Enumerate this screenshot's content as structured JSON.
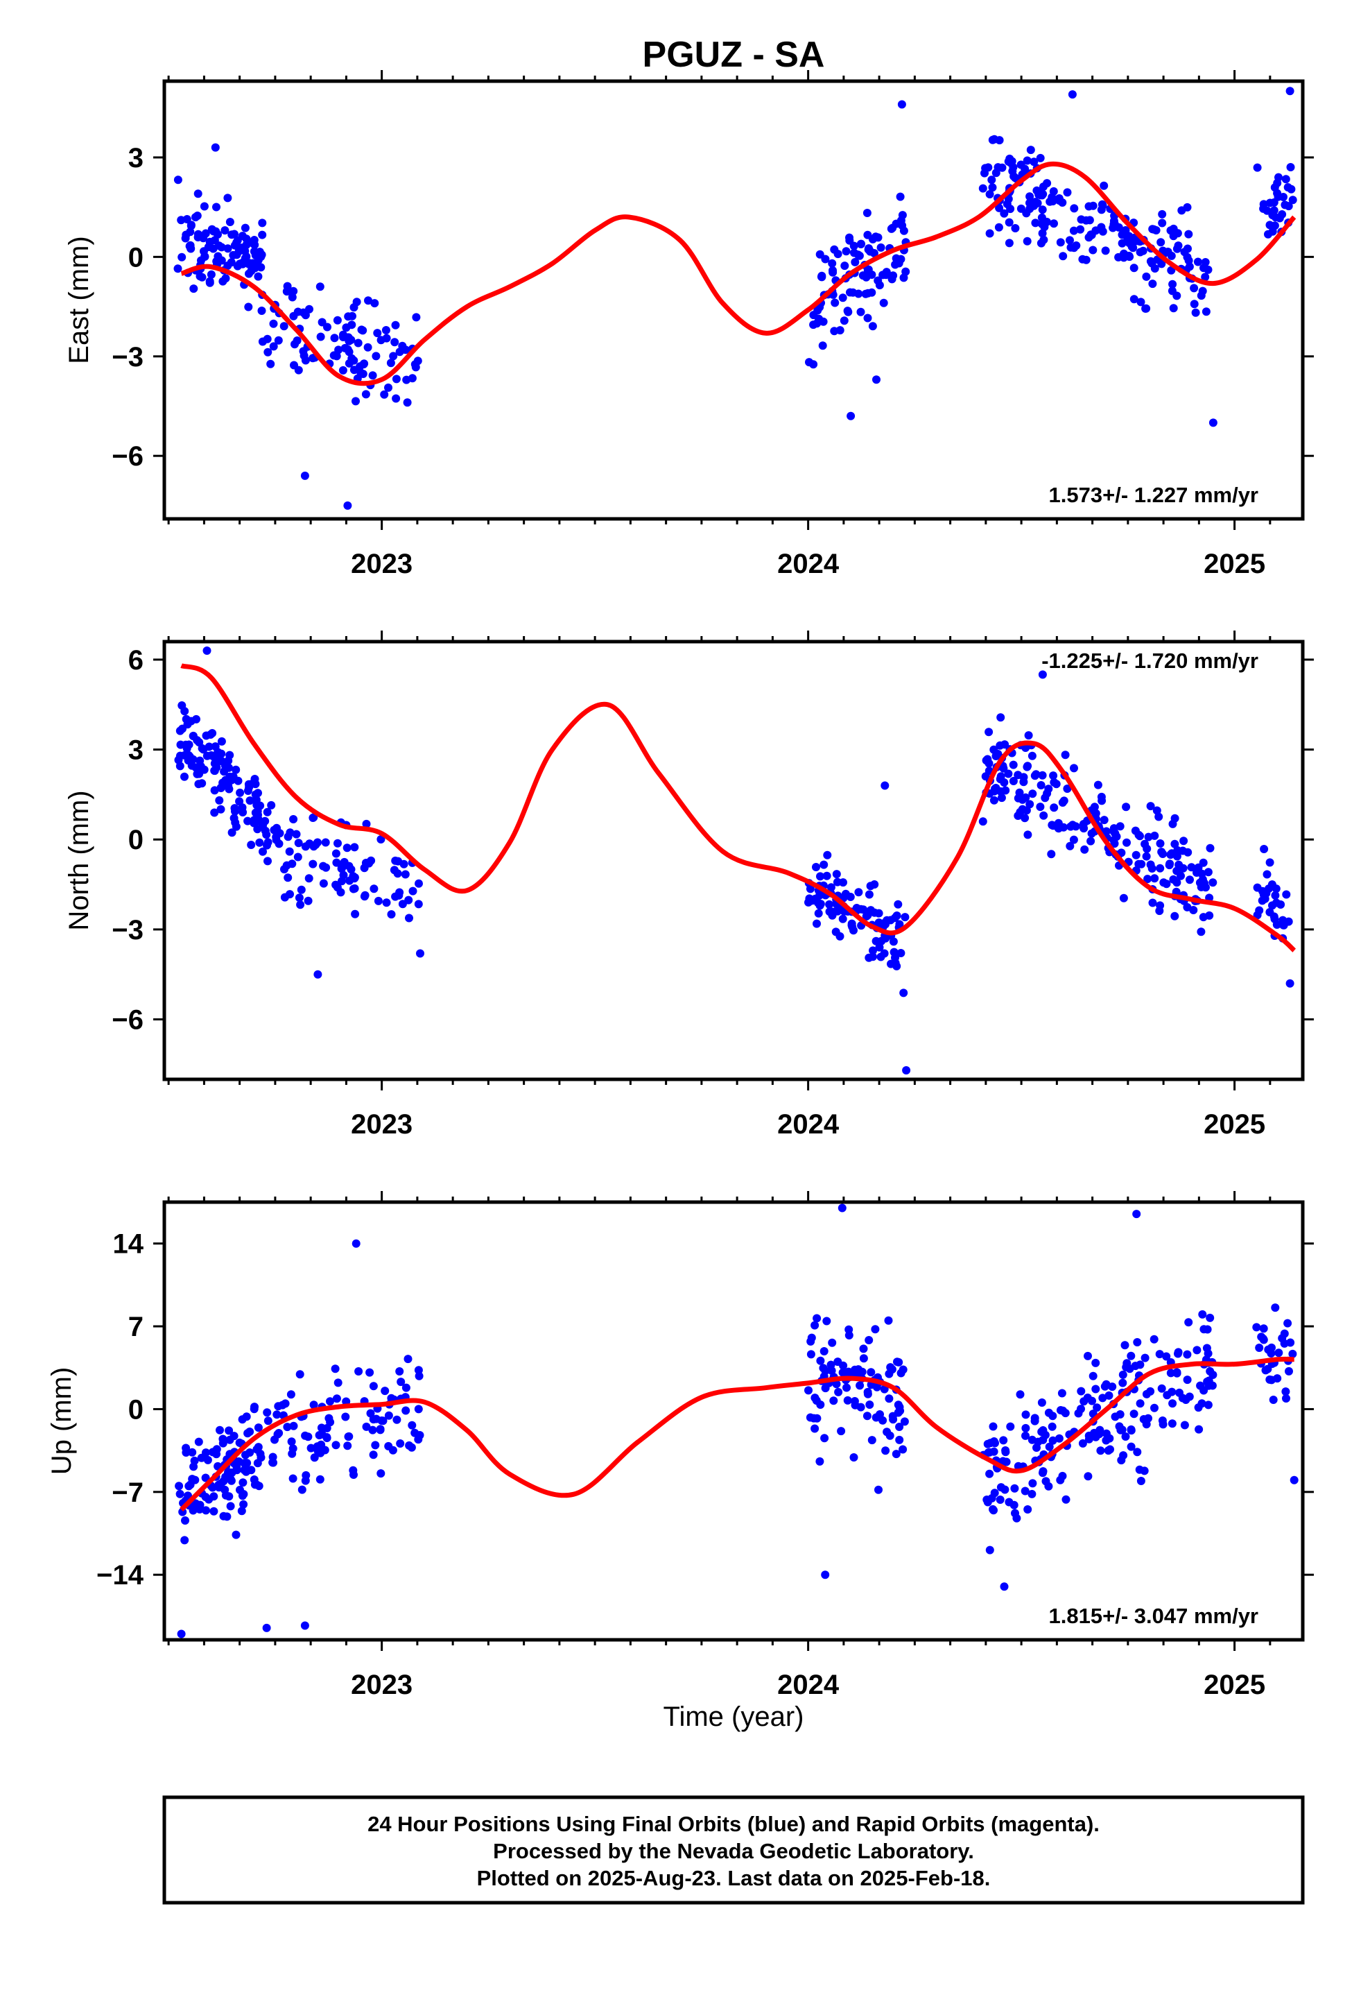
{
  "title": "PGUZ - SA",
  "x_axis_label": "Time (year)",
  "footer": {
    "line1": "24 Hour Positions Using Final Orbits (blue) and Rapid Orbits (magenta).",
    "line2": "Processed by the Nevada Geodetic Laboratory.",
    "line3": "Plotted on 2025-Aug-23. Last data on 2025-Feb-18."
  },
  "colors": {
    "points": "#0000ff",
    "fit": "#ff0000",
    "axes": "#000000"
  },
  "chart_data": [
    {
      "type": "scatter",
      "ylabel": "East (mm)",
      "rate": "1.573+/- 1.227 mm/yr",
      "rate_position": "bottom-right",
      "xlim": [
        2022.49,
        2025.16
      ],
      "ylim": [
        -7.9,
        5.3
      ],
      "xticks": [
        2023,
        2024,
        2025
      ],
      "xtick_labels": [
        "2023",
        "2024",
        "2025"
      ],
      "yticks": [
        3,
        0,
        -3,
        -6
      ],
      "ytick_labels": [
        "3",
        "0",
        "−3",
        "−6"
      ],
      "grid": false,
      "scatter_clusters": [
        {
          "x": [
            2022.52,
            2022.72
          ],
          "y_trend": [
            0.5,
            -0.2
          ],
          "spread": 1.3,
          "n": 110
        },
        {
          "x": [
            2022.72,
            2023.09
          ],
          "y_trend": [
            -1.9,
            -3.3
          ],
          "spread": 1.4,
          "n": 100
        },
        {
          "x": [
            2024.0,
            2024.23
          ],
          "y_trend": [
            -1.8,
            0.7
          ],
          "spread": 1.6,
          "n": 100
        },
        {
          "x": [
            2024.41,
            2024.95
          ],
          "y_trend": [
            2.3,
            -0.6
          ],
          "spread": 1.5,
          "n": 200
        },
        {
          "x": [
            2025.05,
            2025.14
          ],
          "y_trend": [
            1.5,
            1.7
          ],
          "spread": 1.0,
          "n": 30
        }
      ],
      "notable_points": [
        {
          "x": 2022.61,
          "y": 3.3
        },
        {
          "x": 2022.92,
          "y": -7.5
        },
        {
          "x": 2022.82,
          "y": -6.6
        },
        {
          "x": 2024.1,
          "y": -4.8
        },
        {
          "x": 2024.22,
          "y": 4.6
        },
        {
          "x": 2024.95,
          "y": -5.0
        },
        {
          "x": 2025.13,
          "y": 5.0
        },
        {
          "x": 2024.62,
          "y": 4.9
        },
        {
          "x": 2024.16,
          "y": -3.7
        }
      ],
      "fit": {
        "x": [
          2022.53,
          2022.6,
          2022.7,
          2022.8,
          2022.9,
          2023.0,
          2023.1,
          2023.2,
          2023.3,
          2023.4,
          2023.5,
          2023.58,
          2023.7,
          2023.8,
          2023.9,
          2024.0,
          2024.1,
          2024.2,
          2024.3,
          2024.4,
          2024.5,
          2024.57,
          2024.65,
          2024.75,
          2024.85,
          2024.95,
          2025.05,
          2025.14
        ],
        "y": [
          -0.5,
          -0.3,
          -0.9,
          -2.2,
          -3.6,
          -3.7,
          -2.5,
          -1.5,
          -0.9,
          -0.2,
          0.8,
          1.2,
          0.5,
          -1.4,
          -2.3,
          -1.6,
          -0.5,
          0.2,
          0.6,
          1.2,
          2.3,
          2.8,
          2.4,
          1.0,
          -0.2,
          -0.8,
          -0.1,
          1.2
        ]
      }
    },
    {
      "type": "scatter",
      "ylabel": "North (mm)",
      "rate": "-1.225+/- 1.720 mm/yr",
      "rate_position": "top-right",
      "xlim": [
        2022.49,
        2025.16
      ],
      "ylim": [
        -8.0,
        6.6
      ],
      "xticks": [
        2023,
        2024,
        2025
      ],
      "xtick_labels": [
        "2023",
        "2024",
        "2025"
      ],
      "yticks": [
        6,
        3,
        0,
        -3,
        -6
      ],
      "ytick_labels": [
        "6",
        "3",
        "0",
        "−3",
        "−6"
      ],
      "grid": false,
      "scatter_clusters": [
        {
          "x": [
            2022.52,
            2022.72
          ],
          "y_trend": [
            3.4,
            0.8
          ],
          "spread": 1.3,
          "n": 110
        },
        {
          "x": [
            2022.72,
            2023.09
          ],
          "y_trend": [
            0.0,
            -1.8
          ],
          "spread": 1.4,
          "n": 100
        },
        {
          "x": [
            2024.0,
            2024.23
          ],
          "y_trend": [
            -1.5,
            -3.6
          ],
          "spread": 1.4,
          "n": 100
        },
        {
          "x": [
            2024.41,
            2024.95
          ],
          "y_trend": [
            2.8,
            -1.8
          ],
          "spread": 1.5,
          "n": 200
        },
        {
          "x": [
            2025.05,
            2025.14
          ],
          "y_trend": [
            -1.2,
            -3.2
          ],
          "spread": 1.2,
          "n": 30
        }
      ],
      "notable_points": [
        {
          "x": 2022.59,
          "y": 6.3
        },
        {
          "x": 2022.85,
          "y": -4.5
        },
        {
          "x": 2023.09,
          "y": -3.8
        },
        {
          "x": 2024.23,
          "y": -7.7
        },
        {
          "x": 2024.18,
          "y": 1.8
        },
        {
          "x": 2024.55,
          "y": 5.5
        },
        {
          "x": 2025.13,
          "y": -4.8
        },
        {
          "x": 2024.41,
          "y": 0.6
        }
      ],
      "fit": {
        "x": [
          2022.53,
          2022.6,
          2022.7,
          2022.8,
          2022.9,
          2023.0,
          2023.1,
          2023.2,
          2023.3,
          2023.4,
          2023.53,
          2023.65,
          2023.8,
          2023.95,
          2024.05,
          2024.15,
          2024.23,
          2024.35,
          2024.45,
          2024.53,
          2024.6,
          2024.7,
          2024.8,
          2024.9,
          2025.0,
          2025.1,
          2025.14
        ],
        "y": [
          5.8,
          5.4,
          3.2,
          1.4,
          0.5,
          0.2,
          -1.0,
          -1.7,
          -0.1,
          3.0,
          4.5,
          2.2,
          -0.4,
          -1.1,
          -1.8,
          -2.9,
          -2.9,
          -0.6,
          2.6,
          3.2,
          2.2,
          -0.1,
          -1.6,
          -2.0,
          -2.3,
          -3.2,
          -3.7
        ]
      }
    },
    {
      "type": "scatter",
      "ylabel": "Up (mm)",
      "rate": "1.815+/- 3.047 mm/yr",
      "rate_position": "bottom-right",
      "xlim": [
        2022.49,
        2025.16
      ],
      "ylim": [
        -19.5,
        17.5
      ],
      "xticks": [
        2023,
        2024,
        2025
      ],
      "xtick_labels": [
        "2023",
        "2024",
        "2025"
      ],
      "yticks": [
        14,
        7,
        0,
        -7,
        -14
      ],
      "ytick_labels": [
        "14",
        "7",
        "0",
        "−7",
        "−14"
      ],
      "grid": false,
      "scatter_clusters": [
        {
          "x": [
            2022.52,
            2022.72
          ],
          "y_trend": [
            -7.5,
            -3.5
          ],
          "spread": 4.5,
          "n": 110
        },
        {
          "x": [
            2022.72,
            2023.09
          ],
          "y_trend": [
            -3.0,
            0.5
          ],
          "spread": 5.0,
          "n": 100
        },
        {
          "x": [
            2024.0,
            2024.23
          ],
          "y_trend": [
            3.0,
            1.0
          ],
          "spread": 6.0,
          "n": 100
        },
        {
          "x": [
            2024.41,
            2024.95
          ],
          "y_trend": [
            -6.0,
            4.5
          ],
          "spread": 5.5,
          "n": 200
        },
        {
          "x": [
            2025.05,
            2025.14
          ],
          "y_trend": [
            4.5,
            4.5
          ],
          "spread": 4.5,
          "n": 30
        }
      ],
      "notable_points": [
        {
          "x": 2022.53,
          "y": -19.0
        },
        {
          "x": 2022.73,
          "y": -18.5
        },
        {
          "x": 2022.82,
          "y": -18.3
        },
        {
          "x": 2022.94,
          "y": 14.0
        },
        {
          "x": 2024.08,
          "y": 17.0
        },
        {
          "x": 2024.04,
          "y": -14.0
        },
        {
          "x": 2024.46,
          "y": -15.0
        },
        {
          "x": 2024.77,
          "y": 16.5
        },
        {
          "x": 2025.14,
          "y": -6.0
        }
      ],
      "fit": {
        "x": [
          2022.53,
          2022.6,
          2022.7,
          2022.8,
          2022.9,
          2023.0,
          2023.1,
          2023.2,
          2023.3,
          2023.45,
          2023.6,
          2023.75,
          2023.9,
          2024.0,
          2024.1,
          2024.2,
          2024.3,
          2024.42,
          2024.5,
          2024.6,
          2024.7,
          2024.8,
          2024.9,
          2025.0,
          2025.1,
          2025.14
        ],
        "y": [
          -8.5,
          -6.0,
          -2.5,
          -0.5,
          0.2,
          0.4,
          0.6,
          -1.8,
          -5.5,
          -7.2,
          -2.8,
          1.0,
          1.8,
          2.2,
          2.6,
          1.8,
          -1.5,
          -4.2,
          -5.2,
          -3.0,
          0.0,
          3.0,
          3.8,
          3.8,
          4.2,
          4.2
        ]
      }
    }
  ]
}
